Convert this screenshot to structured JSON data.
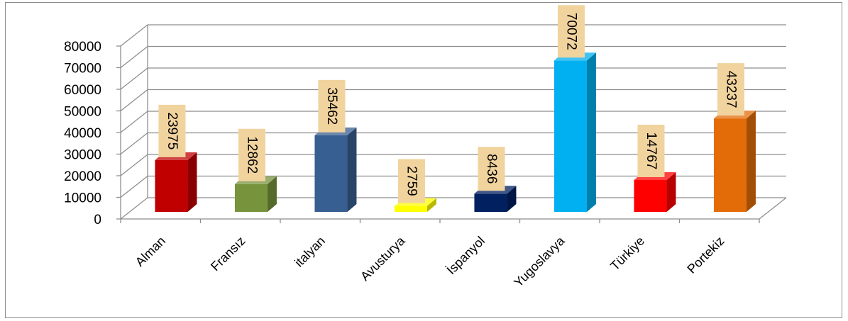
{
  "chart_data": {
    "type": "bar",
    "title": "",
    "xlabel": "",
    "ylabel": "",
    "ylim": [
      0,
      80000
    ],
    "yticks": [
      0,
      10000,
      20000,
      30000,
      40000,
      50000,
      60000,
      70000,
      80000
    ],
    "categories": [
      "Alman",
      "Fransız",
      "italyan",
      "Avusturya",
      "İspanyol",
      "Yugoslavya",
      "Türkiye",
      "Portekiz"
    ],
    "values": [
      23975,
      12862,
      35462,
      2759,
      8436,
      70072,
      14767,
      43237
    ],
    "colors": [
      "#c00000",
      "#77933c",
      "#375f91",
      "#ffff00",
      "#002060",
      "#00b0f0",
      "#ff0000",
      "#e36c09"
    ],
    "data_labels": [
      "23975",
      "12862",
      "35462",
      "2759",
      "8436",
      "70072",
      "14767",
      "43237"
    ],
    "label_box_color": "#f1d39e",
    "grid": true,
    "legend": "none",
    "style": "3d-column"
  }
}
